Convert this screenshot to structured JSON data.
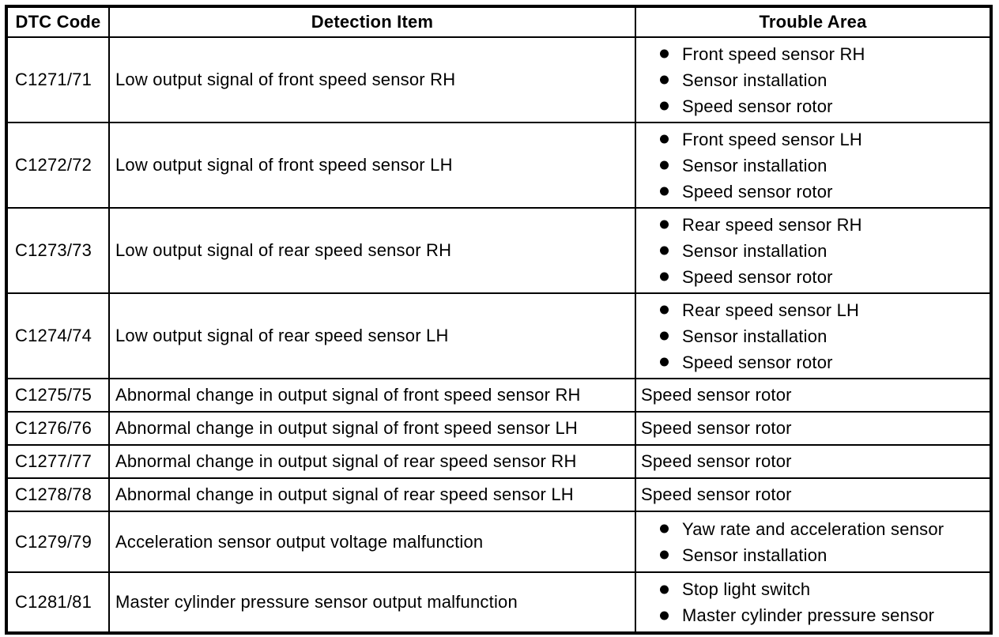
{
  "table": {
    "headers": [
      {
        "label": "DTC Code"
      },
      {
        "label": "Detection Item"
      },
      {
        "label": "Trouble Area"
      }
    ],
    "rows": [
      {
        "dtc_code": "C1271/71",
        "detection_item": "Low output signal of front speed sensor RH",
        "trouble_area": {
          "bulleted": true,
          "items": [
            "Front speed sensor RH",
            "Sensor installation",
            "Speed sensor rotor"
          ]
        }
      },
      {
        "dtc_code": "C1272/72",
        "detection_item": "Low output signal of front speed sensor LH",
        "trouble_area": {
          "bulleted": true,
          "items": [
            "Front speed sensor LH",
            "Sensor installation",
            "Speed sensor rotor"
          ]
        }
      },
      {
        "dtc_code": "C1273/73",
        "detection_item": "Low output signal of rear speed sensor RH",
        "trouble_area": {
          "bulleted": true,
          "items": [
            "Rear speed sensor RH",
            "Sensor installation",
            "Speed sensor rotor"
          ]
        }
      },
      {
        "dtc_code": "C1274/74",
        "detection_item": "Low output signal of rear speed sensor LH",
        "trouble_area": {
          "bulleted": true,
          "items": [
            "Rear speed sensor LH",
            "Sensor installation",
            "Speed sensor rotor"
          ]
        }
      },
      {
        "dtc_code": "C1275/75",
        "detection_item": "Abnormal change in output signal of front speed sensor RH",
        "trouble_area": {
          "bulleted": false,
          "items": [
            "Speed sensor rotor"
          ]
        }
      },
      {
        "dtc_code": "C1276/76",
        "detection_item": "Abnormal change in output signal of front speed sensor LH",
        "trouble_area": {
          "bulleted": false,
          "items": [
            "Speed sensor rotor"
          ]
        }
      },
      {
        "dtc_code": "C1277/77",
        "detection_item": "Abnormal change in output signal of rear speed sensor RH",
        "trouble_area": {
          "bulleted": false,
          "items": [
            "Speed sensor rotor"
          ]
        }
      },
      {
        "dtc_code": "C1278/78",
        "detection_item": "Abnormal change in output signal of rear speed sensor LH",
        "trouble_area": {
          "bulleted": false,
          "items": [
            "Speed sensor rotor"
          ]
        }
      },
      {
        "dtc_code": "C1279/79",
        "detection_item": "Acceleration sensor output voltage malfunction",
        "trouble_area": {
          "bulleted": true,
          "items": [
            "Yaw rate and acceleration sensor",
            "Sensor installation"
          ]
        }
      },
      {
        "dtc_code": "C1281/81",
        "detection_item": "Master cylinder pressure sensor output malfunction",
        "trouble_area": {
          "bulleted": true,
          "items": [
            "Stop light switch",
            "Master cylinder pressure sensor"
          ]
        }
      }
    ],
    "colors": {
      "border": "#000000",
      "text": "#000000",
      "background": "#ffffff"
    }
  }
}
